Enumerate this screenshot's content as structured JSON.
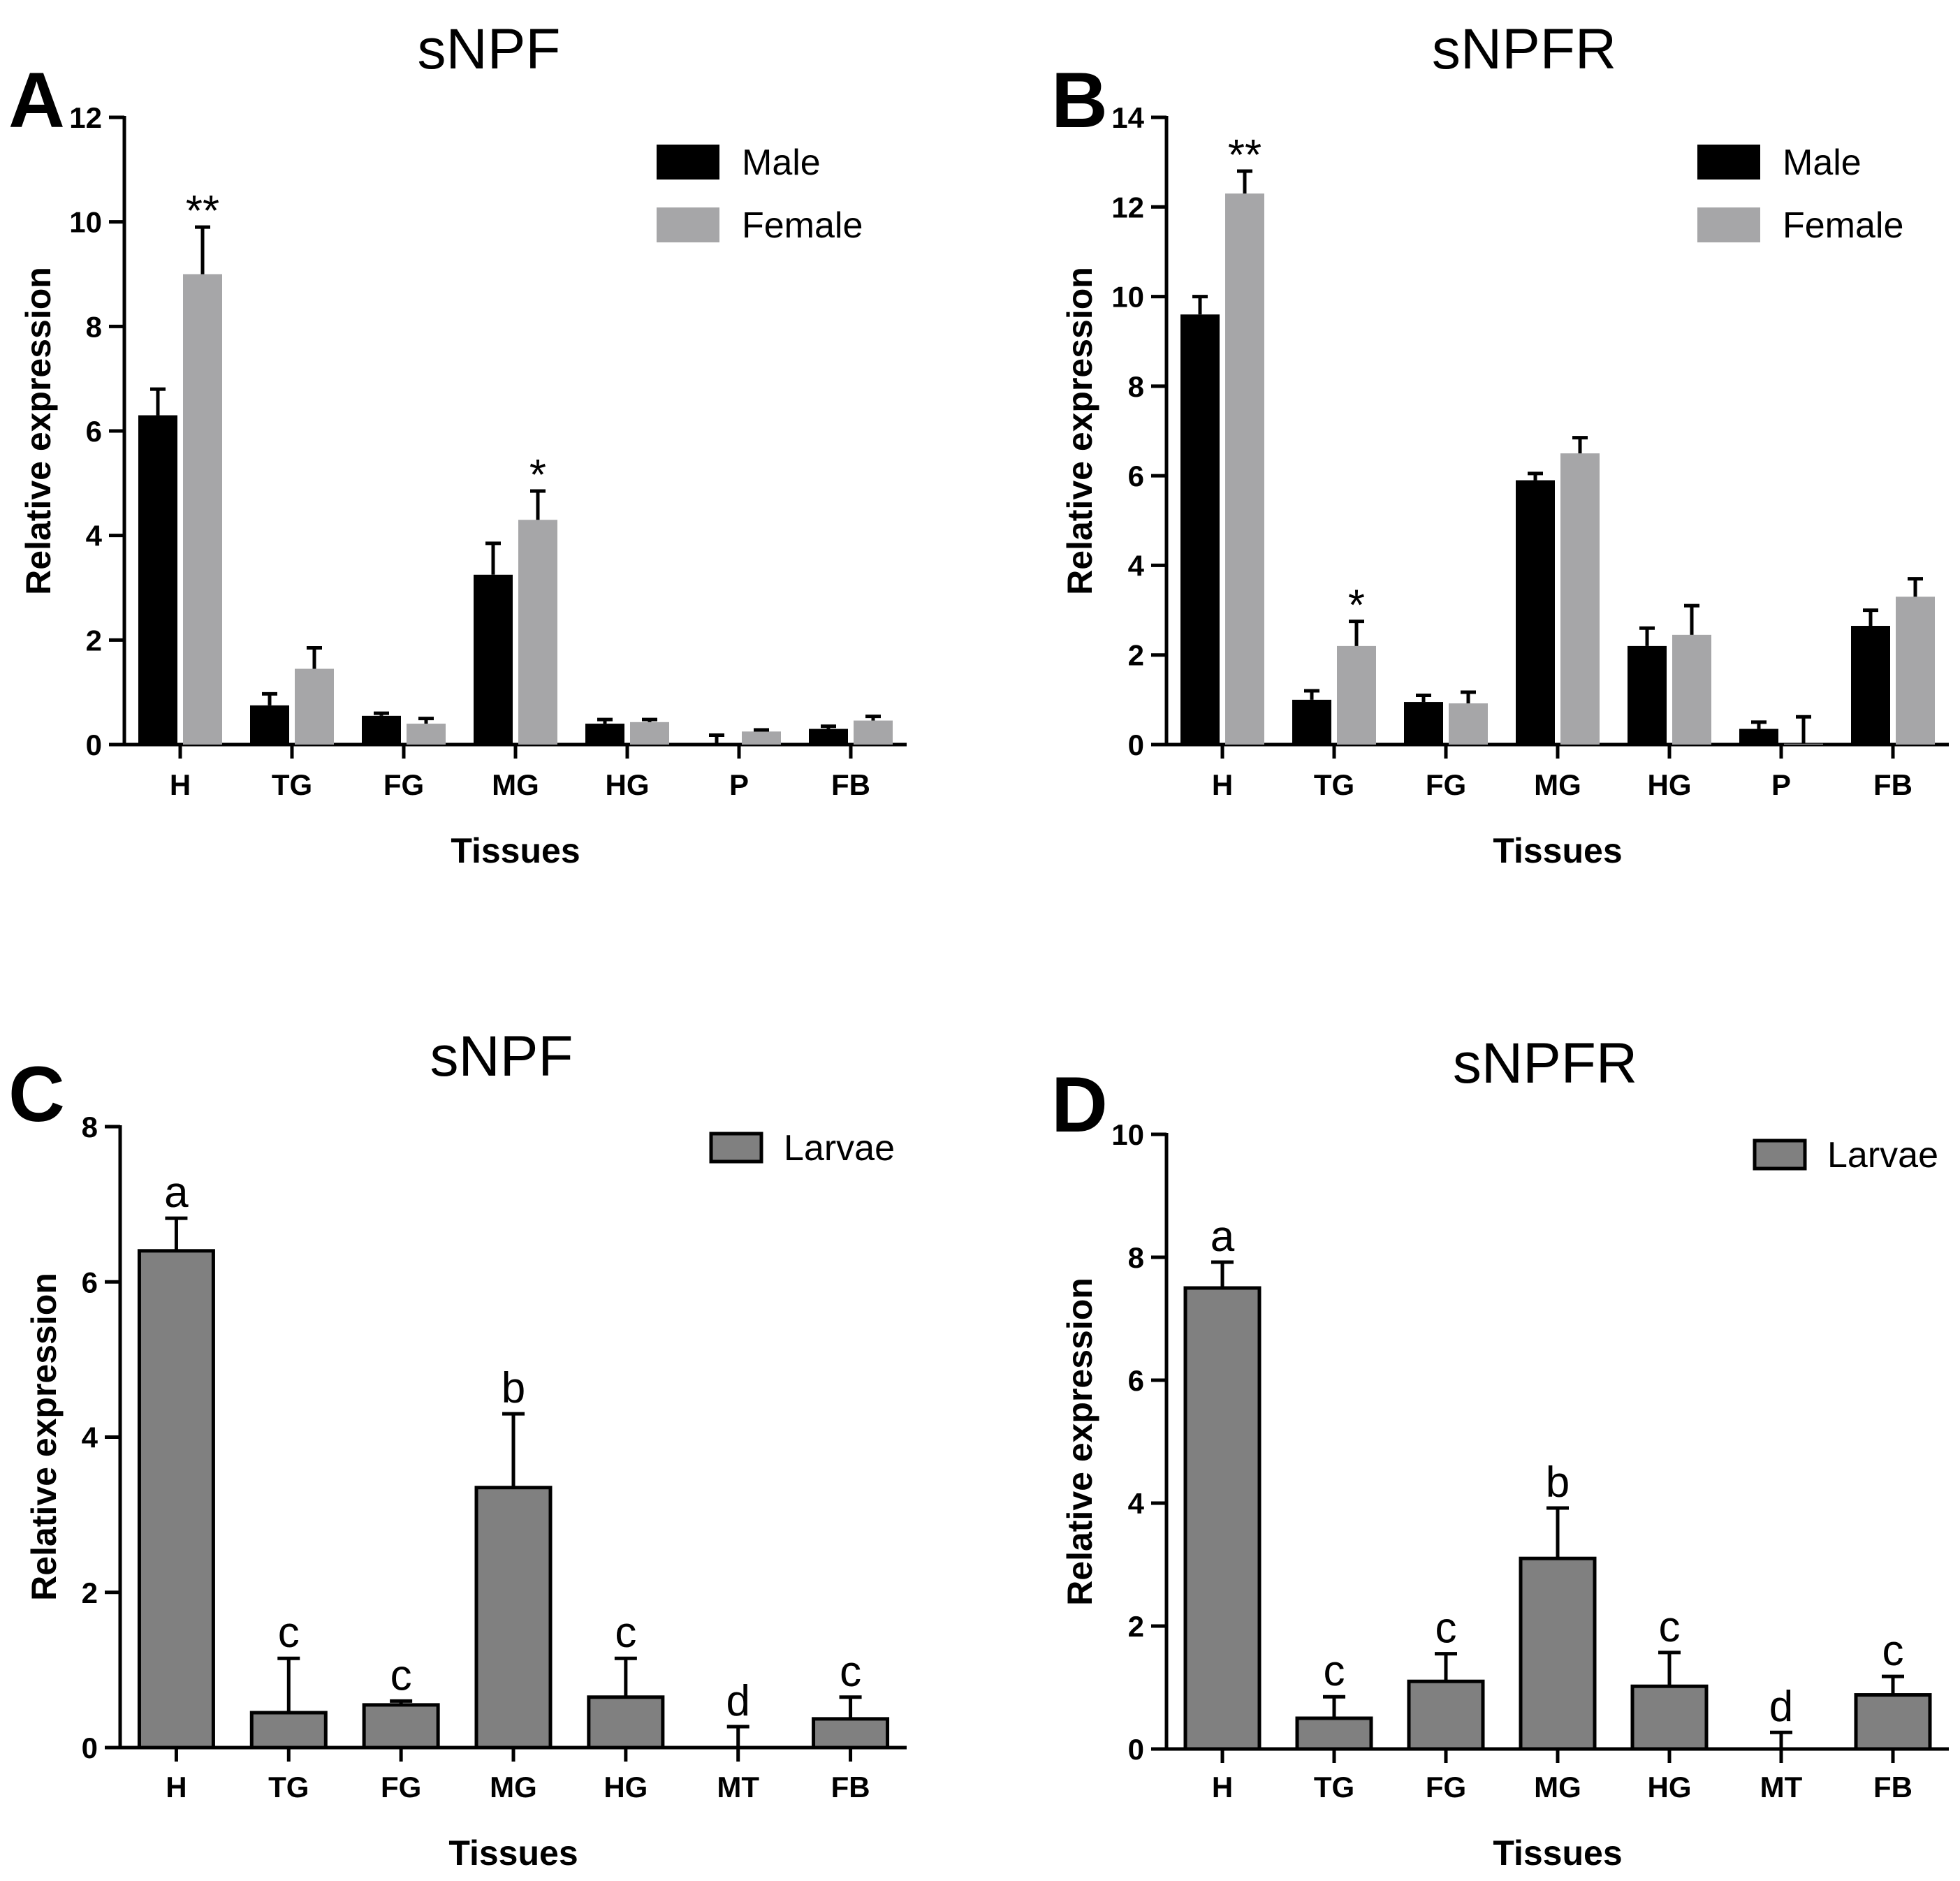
{
  "colors": {
    "male": "#000000",
    "female": "#a6a6a8",
    "larvae": "#808080",
    "axis": "#000000"
  },
  "chart_data": [
    {
      "panel": "A",
      "type": "bar",
      "title": "sNPF",
      "xlabel": "Tissues",
      "ylabel": "Relative expression",
      "ylim": [
        0,
        12
      ],
      "yticks": [
        "0",
        "2",
        "4",
        "6",
        "8",
        "10",
        "12"
      ],
      "categories": [
        "H",
        "TG",
        "FG",
        "MG",
        "HG",
        "P",
        "FB"
      ],
      "legend_position": "top-right",
      "series": [
        {
          "name": "Male",
          "color_key": "male",
          "values": [
            6.3,
            0.75,
            0.55,
            3.25,
            0.4,
            0.03,
            0.3
          ],
          "errors": [
            0.5,
            0.22,
            0.05,
            0.6,
            0.08,
            0.15,
            0.05
          ]
        },
        {
          "name": "Female",
          "color_key": "female",
          "values": [
            9.0,
            1.45,
            0.4,
            4.3,
            0.43,
            0.25,
            0.46
          ],
          "errors": [
            0.9,
            0.4,
            0.1,
            0.55,
            0.05,
            0.03,
            0.08
          ]
        }
      ],
      "annotations": [
        {
          "text": "**",
          "series": 1,
          "category": 0
        },
        {
          "text": "*",
          "series": 1,
          "category": 3
        }
      ]
    },
    {
      "panel": "B",
      "type": "bar",
      "title": "sNPFR",
      "xlabel": "Tissues",
      "ylabel": "Relative expression",
      "ylim": [
        0,
        14
      ],
      "yticks": [
        "0",
        "2",
        "4",
        "6",
        "8",
        "10",
        "12",
        "14"
      ],
      "categories": [
        "H",
        "TG",
        "FG",
        "MG",
        "HG",
        "P",
        "FB"
      ],
      "legend_position": "top-right",
      "series": [
        {
          "name": "Male",
          "color_key": "male",
          "values": [
            9.6,
            1.0,
            0.95,
            5.9,
            2.2,
            0.35,
            2.65
          ],
          "errors": [
            0.4,
            0.2,
            0.15,
            0.15,
            0.4,
            0.15,
            0.35
          ]
        },
        {
          "name": "Female",
          "color_key": "female",
          "values": [
            12.3,
            2.2,
            0.92,
            6.5,
            2.45,
            0.02,
            3.3
          ],
          "errors": [
            0.5,
            0.55,
            0.25,
            0.35,
            0.65,
            0.6,
            0.4
          ]
        }
      ],
      "annotations": [
        {
          "text": "**",
          "series": 1,
          "category": 0
        },
        {
          "text": "*",
          "series": 1,
          "category": 1
        }
      ]
    },
    {
      "panel": "C",
      "type": "bar",
      "title": "sNPF",
      "xlabel": "Tissues",
      "ylabel": "Relative expression",
      "ylim": [
        0,
        8
      ],
      "yticks": [
        "0",
        "2",
        "4",
        "6",
        "8"
      ],
      "categories": [
        "H",
        "TG",
        "FG",
        "MG",
        "HG",
        "MT",
        "FB"
      ],
      "legend_position": "top-right",
      "series": [
        {
          "name": "Larvae",
          "color_key": "larvae",
          "values": [
            6.4,
            0.45,
            0.55,
            3.35,
            0.65,
            0.0,
            0.37
          ],
          "errors": [
            0.42,
            0.7,
            0.05,
            0.95,
            0.5,
            0.27,
            0.28
          ]
        }
      ],
      "annotations": [
        {
          "text": "a",
          "series": 0,
          "category": 0
        },
        {
          "text": "c",
          "series": 0,
          "category": 1
        },
        {
          "text": "c",
          "series": 0,
          "category": 2
        },
        {
          "text": "b",
          "series": 0,
          "category": 3
        },
        {
          "text": "c",
          "series": 0,
          "category": 4
        },
        {
          "text": "d",
          "series": 0,
          "category": 5
        },
        {
          "text": "c",
          "series": 0,
          "category": 6
        }
      ]
    },
    {
      "panel": "D",
      "type": "bar",
      "title": "sNPFR",
      "xlabel": "Tissues",
      "ylabel": "Relative expression",
      "ylim": [
        0,
        10
      ],
      "yticks": [
        "0",
        "2",
        "4",
        "6",
        "8",
        "10"
      ],
      "categories": [
        "H",
        "TG",
        "FG",
        "MG",
        "HG",
        "MT",
        "FB"
      ],
      "legend_position": "top-right",
      "series": [
        {
          "name": "Larvae",
          "color_key": "larvae",
          "values": [
            7.5,
            0.5,
            1.1,
            3.1,
            1.02,
            0.0,
            0.88
          ],
          "errors": [
            0.42,
            0.35,
            0.45,
            0.82,
            0.55,
            0.27,
            0.3
          ]
        }
      ],
      "annotations": [
        {
          "text": "a",
          "series": 0,
          "category": 0
        },
        {
          "text": "c",
          "series": 0,
          "category": 1
        },
        {
          "text": "c",
          "series": 0,
          "category": 2
        },
        {
          "text": "b",
          "series": 0,
          "category": 3
        },
        {
          "text": "c",
          "series": 0,
          "category": 4
        },
        {
          "text": "d",
          "series": 0,
          "category": 5
        },
        {
          "text": "c",
          "series": 0,
          "category": 6
        }
      ]
    }
  ]
}
